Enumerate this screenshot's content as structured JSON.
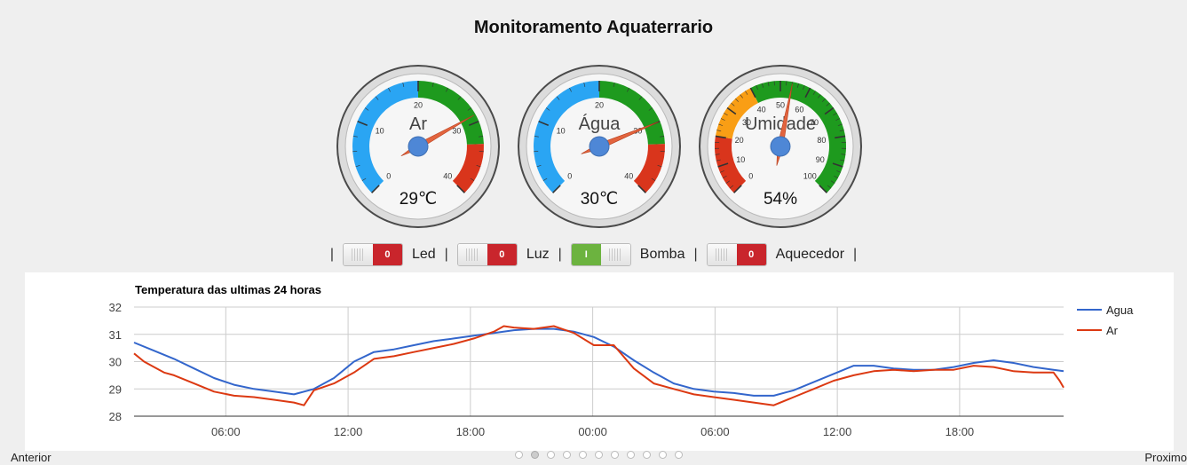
{
  "page": {
    "title": "Monitoramento Aquaterrario"
  },
  "gauges": [
    {
      "label": "Ar",
      "value": 29,
      "display": "29℃",
      "min": 0,
      "max": 40,
      "ticks": [
        "0",
        "10",
        "20",
        "30",
        "40"
      ],
      "bands": [
        {
          "from": 0,
          "to": 20,
          "color": "#2aa5f3"
        },
        {
          "from": 20,
          "to": 33,
          "color": "#1e9a1e"
        },
        {
          "from": 33,
          "to": 40,
          "color": "#d9351c"
        }
      ]
    },
    {
      "label": "Água",
      "value": 30,
      "display": "30℃",
      "min": 0,
      "max": 40,
      "ticks": [
        "0",
        "10",
        "20",
        "30",
        "40"
      ],
      "bands": [
        {
          "from": 0,
          "to": 20,
          "color": "#2aa5f3"
        },
        {
          "from": 20,
          "to": 33,
          "color": "#1e9a1e"
        },
        {
          "from": 33,
          "to": 40,
          "color": "#d9351c"
        }
      ]
    },
    {
      "label": "Umidade",
      "value": 54,
      "display": "54%",
      "min": 0,
      "max": 100,
      "ticks": [
        "0",
        "10",
        "20",
        "30",
        "40",
        "50",
        "60",
        "70",
        "80",
        "90",
        "100"
      ],
      "bands": [
        {
          "from": 0,
          "to": 20,
          "color": "#d9351c"
        },
        {
          "from": 20,
          "to": 40,
          "color": "#f99e15"
        },
        {
          "from": 40,
          "to": 100,
          "color": "#1e9a1e"
        }
      ]
    }
  ],
  "toggles": [
    {
      "label": "Led",
      "state": "0",
      "on": false
    },
    {
      "label": "Luz",
      "state": "0",
      "on": false
    },
    {
      "label": "Bomba",
      "state": "I",
      "on": true
    },
    {
      "label": "Aquecedor",
      "state": "0",
      "on": false
    }
  ],
  "toggle_separator": "|",
  "colors": {
    "agua": "#3366cc",
    "ar": "#dc3912",
    "needle": "#e2643e",
    "hub": "#4e87d6"
  },
  "chart_data": {
    "type": "line",
    "title": "Temperatura das ultimas 24 horas",
    "ylim": [
      28,
      32
    ],
    "yticks": [
      "28",
      "29",
      "30",
      "31",
      "32"
    ],
    "x_range_hours": [
      1.5,
      24.6
    ],
    "xticks": [
      {
        "h": 6,
        "label": "06:00"
      },
      {
        "h": 12,
        "label": "12:00"
      },
      {
        "h": 18,
        "label": "18:00"
      },
      {
        "h": 24,
        "label": "00:00"
      },
      {
        "h": 30,
        "label": "06:00"
      },
      {
        "h": 36,
        "label": "12:00"
      },
      {
        "h": 42,
        "label": "18:00"
      }
    ],
    "legend_position": "right",
    "grid": true,
    "series": [
      {
        "name": "Agua",
        "color": "#3366cc",
        "points": [
          [
            0,
            30.7
          ],
          [
            1,
            30.4
          ],
          [
            2,
            30.1
          ],
          [
            3,
            29.75
          ],
          [
            4,
            29.4
          ],
          [
            5,
            29.15
          ],
          [
            6,
            29.0
          ],
          [
            7,
            28.9
          ],
          [
            8,
            28.8
          ],
          [
            9,
            29.0
          ],
          [
            10,
            29.4
          ],
          [
            11,
            30.0
          ],
          [
            12,
            30.35
          ],
          [
            13,
            30.45
          ],
          [
            14,
            30.6
          ],
          [
            15,
            30.75
          ],
          [
            16,
            30.85
          ],
          [
            17,
            30.95
          ],
          [
            18,
            31.05
          ],
          [
            19,
            31.15
          ],
          [
            20,
            31.2
          ],
          [
            21,
            31.2
          ],
          [
            22,
            31.1
          ],
          [
            23,
            30.9
          ],
          [
            24,
            30.55
          ],
          [
            25,
            30.05
          ],
          [
            26,
            29.6
          ],
          [
            27,
            29.2
          ],
          [
            28,
            29.0
          ],
          [
            29,
            28.9
          ],
          [
            30,
            28.85
          ],
          [
            31,
            28.75
          ],
          [
            32,
            28.75
          ],
          [
            33,
            28.95
          ],
          [
            34,
            29.25
          ],
          [
            35,
            29.55
          ],
          [
            36,
            29.85
          ],
          [
            37,
            29.85
          ],
          [
            38,
            29.75
          ],
          [
            39,
            29.7
          ],
          [
            40,
            29.7
          ],
          [
            41,
            29.8
          ],
          [
            42,
            29.95
          ],
          [
            43,
            30.05
          ],
          [
            44,
            29.95
          ],
          [
            45,
            29.8
          ],
          [
            46,
            29.7
          ],
          [
            46.5,
            29.65
          ]
        ]
      },
      {
        "name": "Ar",
        "color": "#dc3912",
        "points": [
          [
            0,
            30.3
          ],
          [
            0.5,
            30.0
          ],
          [
            1,
            29.8
          ],
          [
            1.5,
            29.6
          ],
          [
            2,
            29.5
          ],
          [
            3,
            29.2
          ],
          [
            4,
            28.9
          ],
          [
            5,
            28.75
          ],
          [
            6,
            28.7
          ],
          [
            7,
            28.6
          ],
          [
            8,
            28.5
          ],
          [
            8.5,
            28.4
          ],
          [
            9,
            28.95
          ],
          [
            10,
            29.2
          ],
          [
            11,
            29.6
          ],
          [
            12,
            30.1
          ],
          [
            13,
            30.2
          ],
          [
            14,
            30.35
          ],
          [
            15,
            30.5
          ],
          [
            16,
            30.65
          ],
          [
            17,
            30.85
          ],
          [
            18,
            31.1
          ],
          [
            18.5,
            31.3
          ],
          [
            19,
            31.25
          ],
          [
            20,
            31.2
          ],
          [
            21,
            31.3
          ],
          [
            22,
            31.05
          ],
          [
            23,
            30.6
          ],
          [
            24,
            30.6
          ],
          [
            25,
            29.75
          ],
          [
            26,
            29.2
          ],
          [
            27,
            29.0
          ],
          [
            28,
            28.8
          ],
          [
            29,
            28.7
          ],
          [
            30,
            28.6
          ],
          [
            31,
            28.5
          ],
          [
            32,
            28.4
          ],
          [
            33,
            28.7
          ],
          [
            34,
            29.0
          ],
          [
            35,
            29.3
          ],
          [
            36,
            29.5
          ],
          [
            37,
            29.65
          ],
          [
            38,
            29.7
          ],
          [
            39,
            29.65
          ],
          [
            40,
            29.7
          ],
          [
            41,
            29.7
          ],
          [
            42,
            29.85
          ],
          [
            43,
            29.8
          ],
          [
            44,
            29.65
          ],
          [
            45,
            29.6
          ],
          [
            46,
            29.6
          ],
          [
            46.3,
            29.3
          ],
          [
            46.5,
            29.05
          ]
        ]
      }
    ]
  },
  "pager": {
    "prev": "Anterior",
    "next": "Proximo",
    "dots": 11,
    "active_dot": 1
  }
}
